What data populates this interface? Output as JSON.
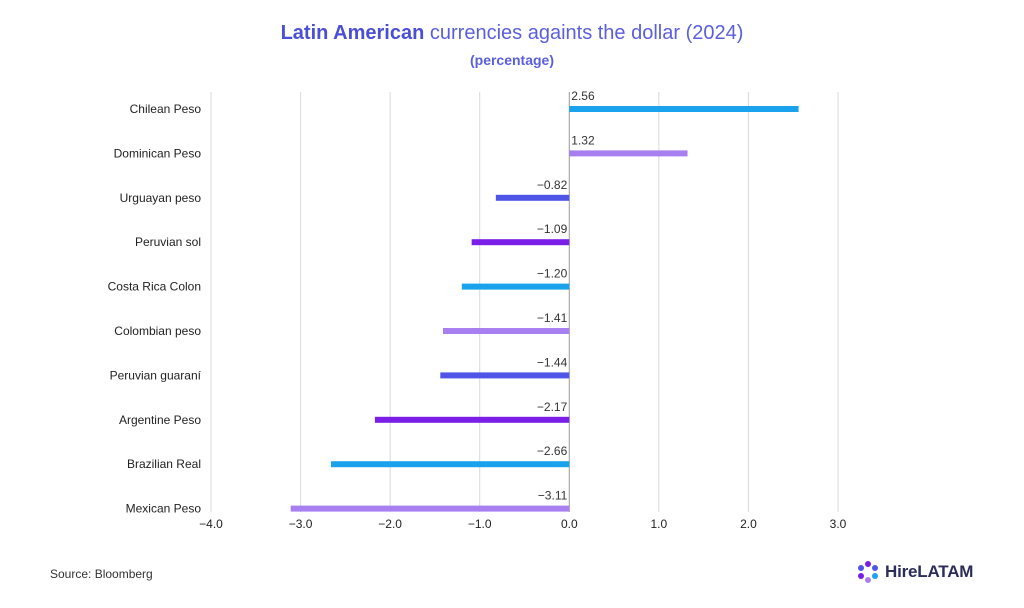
{
  "title": {
    "bold_part": "Latin American",
    "rest": "currencies againts the dollar (2024)"
  },
  "subtitle": "(percentage)",
  "source": "Source: Bloomberg",
  "logo": {
    "text": "HireLATAM",
    "icon": "hirelatam-hexagon-logo-icon"
  },
  "chart_data": {
    "type": "bar",
    "orientation": "horizontal",
    "categories": [
      "Chilean Peso",
      "Dominican Peso",
      "Urguayan peso",
      "Peruvian sol",
      "Costa Rica Colon",
      "Colombian peso",
      "Peruvian guaraní",
      "Argentine Peso",
      "Brazilian Real",
      "Mexican Peso"
    ],
    "values": [
      2.56,
      1.32,
      -0.82,
      -1.09,
      -1.2,
      -1.41,
      -1.44,
      -2.17,
      -2.66,
      -3.11
    ],
    "value_labels": [
      "2.56",
      "1.32",
      "−0.82",
      "−1.09",
      "−1.20",
      "−1.41",
      "−1.44",
      "−2.17",
      "−2.66",
      "−3.11"
    ],
    "bar_colors": [
      "#1aa3ec",
      "#a77ff0",
      "#4f55e6",
      "#7a1ee8",
      "#1aa3ec",
      "#a77ff0",
      "#4f55e6",
      "#7a1ee8",
      "#1aa3ec",
      "#a77ff0"
    ],
    "xlim": [
      -4,
      3
    ],
    "xticks": [
      -4,
      -3,
      -2,
      -1,
      0,
      1,
      2,
      3
    ],
    "xtick_labels": [
      "−4.0",
      "−3.0",
      "−2.0",
      "−1.0",
      "0.0",
      "1.0",
      "2.0",
      "3.0"
    ],
    "grid": "vertical",
    "legend": "none"
  }
}
